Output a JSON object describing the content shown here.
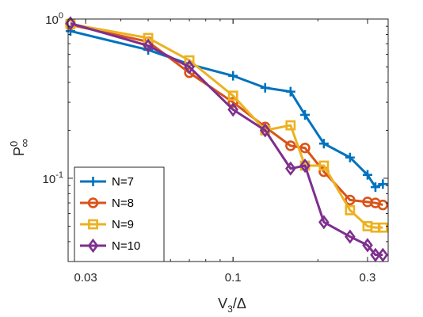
{
  "chart_data": {
    "type": "line",
    "x_scale": "log",
    "y_scale": "log",
    "xlim": [
      0.026,
      0.355
    ],
    "ylim": [
      0.03,
      1.0
    ],
    "grid": false,
    "xlabel": {
      "main": "V",
      "sub": "3",
      "rest": "/Δ"
    },
    "ylabel": {
      "main": "P",
      "sub": "∞",
      "sup": "0"
    },
    "x_ticks": [
      {
        "value": 0.03,
        "label": "0.03"
      },
      {
        "value": 0.1,
        "label": "0.1"
      },
      {
        "value": 0.3,
        "label": "0.3"
      }
    ],
    "y_ticks": [
      {
        "value": 1.0,
        "base": "10",
        "exp": "0"
      },
      {
        "value": 0.1,
        "base": "10",
        "exp": "-1"
      }
    ],
    "legend_position": "bottom-left",
    "series": [
      {
        "name": "N=7",
        "color": "#0072BD",
        "marker": "plus",
        "x": [
          0.0265,
          0.05,
          0.07,
          0.1,
          0.13,
          0.16,
          0.18,
          0.21,
          0.26,
          0.3,
          0.32,
          0.34
        ],
        "y": [
          0.84,
          0.64,
          0.52,
          0.44,
          0.37,
          0.35,
          0.25,
          0.165,
          0.135,
          0.105,
          0.088,
          0.092
        ]
      },
      {
        "name": "N=8",
        "color": "#D95319",
        "marker": "circle",
        "x": [
          0.0265,
          0.05,
          0.07,
          0.1,
          0.13,
          0.16,
          0.18,
          0.21,
          0.26,
          0.3,
          0.32,
          0.34
        ],
        "y": [
          0.92,
          0.72,
          0.46,
          0.3,
          0.21,
          0.16,
          0.155,
          0.11,
          0.073,
          0.071,
          0.07,
          0.068
        ]
      },
      {
        "name": "N=9",
        "color": "#EDB120",
        "marker": "square",
        "x": [
          0.0265,
          0.05,
          0.07,
          0.1,
          0.13,
          0.16,
          0.18,
          0.21,
          0.26,
          0.3,
          0.32,
          0.34
        ],
        "y": [
          0.93,
          0.76,
          0.55,
          0.33,
          0.2,
          0.215,
          0.12,
          0.12,
          0.063,
          0.05,
          0.049,
          0.049
        ]
      },
      {
        "name": "N=10",
        "color": "#7E2F8E",
        "marker": "diamond",
        "x": [
          0.0265,
          0.05,
          0.07,
          0.1,
          0.13,
          0.16,
          0.18,
          0.21,
          0.26,
          0.3,
          0.32,
          0.34
        ],
        "y": [
          0.94,
          0.68,
          0.5,
          0.27,
          0.2,
          0.115,
          0.12,
          0.053,
          0.043,
          0.038,
          0.033,
          0.033
        ]
      }
    ]
  }
}
